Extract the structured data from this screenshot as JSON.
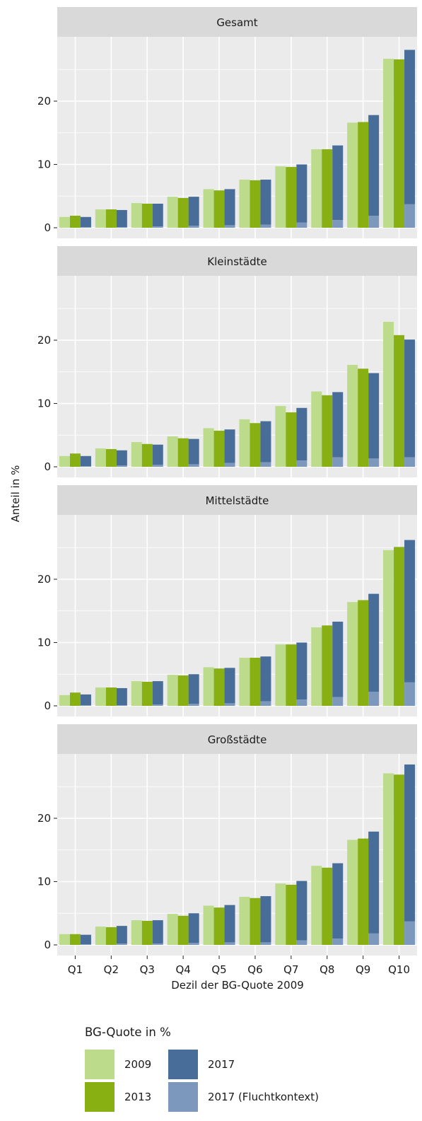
{
  "chart_data": {
    "type": "bar",
    "panels": [
      "Gesamt",
      "Kleinstädte",
      "Mittelstädte",
      "Großstädte"
    ],
    "categories": [
      "Q1",
      "Q2",
      "Q3",
      "Q4",
      "Q5",
      "Q6",
      "Q7",
      "Q8",
      "Q9",
      "Q10"
    ],
    "xlabel": "Dezil der BG-Quote 2009",
    "ylabel": "Anteil in %",
    "ylim": [
      0,
      30
    ],
    "yticks": [
      0,
      10,
      20
    ],
    "grid": true,
    "legend": {
      "title": "BG-Quote in %",
      "position": "bottom",
      "entries": [
        "2009",
        "2013",
        "2017",
        "2017 (Fluchtkontext)"
      ]
    },
    "colors": {
      "2009": "#bcdc8c",
      "2013": "#88b012",
      "2017": "#496d99",
      "2017 (Fluchtkontext)": "#7c98bd"
    },
    "series_2017_note": "2017 bars are stacked: Fluchtkontext portion at bottom",
    "data": {
      "Gesamt": {
        "2009": [
          1.7,
          2.9,
          3.9,
          4.9,
          6.1,
          7.6,
          9.7,
          12.4,
          16.6,
          26.7
        ],
        "2013": [
          1.9,
          2.9,
          3.8,
          4.7,
          5.9,
          7.5,
          9.6,
          12.4,
          16.7,
          26.6
        ],
        "2017": [
          1.7,
          2.8,
          3.8,
          4.9,
          6.1,
          7.6,
          10.0,
          13.0,
          17.8,
          28.1
        ],
        "2017 (Fluchtkontext)": [
          0.1,
          0.1,
          0.2,
          0.3,
          0.4,
          0.5,
          0.8,
          1.2,
          1.9,
          3.7
        ]
      },
      "Kleinstädte": {
        "2009": [
          1.7,
          2.9,
          3.9,
          4.8,
          6.1,
          7.5,
          9.6,
          11.9,
          16.1,
          22.9
        ],
        "2013": [
          2.1,
          2.8,
          3.6,
          4.5,
          5.7,
          6.9,
          8.6,
          11.3,
          15.5,
          20.8
        ],
        "2017": [
          1.7,
          2.6,
          3.5,
          4.4,
          5.9,
          7.2,
          9.3,
          11.8,
          14.8,
          20.1
        ],
        "2017 (Fluchtkontext)": [
          0.1,
          0.2,
          0.3,
          0.4,
          0.6,
          0.7,
          1.0,
          1.5,
          1.3,
          1.5
        ]
      },
      "Mittelstädte": {
        "2009": [
          1.7,
          2.9,
          3.9,
          4.9,
          6.1,
          7.6,
          9.7,
          12.4,
          16.4,
          24.6
        ],
        "2013": [
          2.1,
          2.9,
          3.8,
          4.8,
          5.9,
          7.6,
          9.7,
          12.7,
          16.7,
          25.1
        ],
        "2017": [
          1.8,
          2.8,
          3.9,
          5.0,
          6.0,
          7.8,
          10.0,
          13.3,
          17.7,
          26.2
        ],
        "2017 (Fluchtkontext)": [
          0.1,
          0.1,
          0.2,
          0.3,
          0.4,
          0.7,
          1.0,
          1.4,
          2.2,
          3.7
        ]
      },
      "Großstädte": {
        "2009": [
          1.7,
          2.9,
          3.9,
          4.9,
          6.2,
          7.6,
          9.7,
          12.5,
          16.6,
          27.1
        ],
        "2013": [
          1.7,
          2.8,
          3.8,
          4.6,
          5.9,
          7.4,
          9.5,
          12.2,
          16.8,
          26.9
        ],
        "2017": [
          1.6,
          3.0,
          3.9,
          5.0,
          6.3,
          7.7,
          10.1,
          12.9,
          17.9,
          28.5
        ],
        "2017 (Fluchtkontext)": [
          0.1,
          0.2,
          0.2,
          0.3,
          0.4,
          0.4,
          0.7,
          1.0,
          1.8,
          3.7
        ]
      }
    }
  }
}
